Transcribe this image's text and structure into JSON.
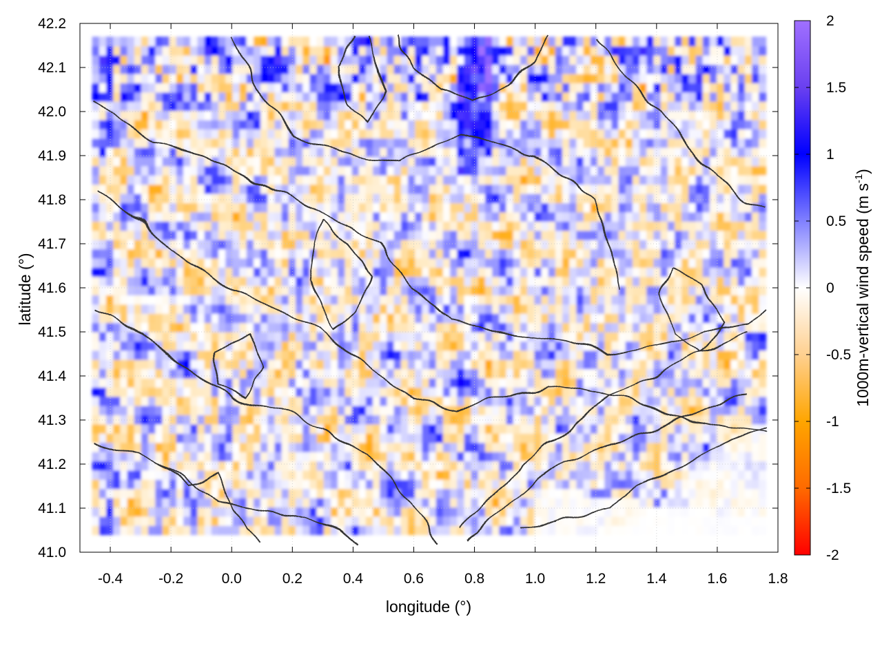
{
  "chart_data": {
    "type": "heatmap",
    "title": "",
    "xlabel": "longitude (°)",
    "ylabel": "latitude (°)",
    "colorbar_label": "1000m-vertical wind speed (m s",
    "colorbar_label_sup": "-1",
    "colorbar_label_end": ")",
    "xlim": [
      -0.5,
      1.8
    ],
    "ylim": [
      41.0,
      42.2
    ],
    "clim": [
      -2,
      2
    ],
    "x_ticks": [
      -0.4,
      -0.2,
      0.0,
      0.2,
      0.4,
      0.6,
      0.8,
      1.0,
      1.2,
      1.4,
      1.6,
      1.8
    ],
    "x_tick_labels": [
      "-0.4",
      "-0.2",
      "0.0",
      "0.2",
      "0.4",
      "0.6",
      "0.8",
      "1.0",
      "1.2",
      "1.4",
      "1.6",
      "1.8"
    ],
    "y_ticks": [
      41.0,
      41.1,
      41.2,
      41.3,
      41.4,
      41.5,
      41.6,
      41.7,
      41.8,
      41.9,
      42.0,
      42.1,
      42.2
    ],
    "y_tick_labels": [
      "41.0",
      "41.1",
      "41.2",
      "41.3",
      "41.4",
      "41.5",
      "41.6",
      "41.7",
      "41.8",
      "41.9",
      "42.0",
      "42.1",
      "42.2"
    ],
    "colorbar_ticks": [
      2,
      1.5,
      1,
      0.5,
      0,
      -0.5,
      -1,
      -1.5,
      -2
    ],
    "colorbar_tick_labels": [
      "2",
      "1.5",
      "1",
      "0.5",
      "0",
      "-0.5",
      "-1",
      "-1.5",
      "-2"
    ],
    "colormap": [
      {
        "value": -2,
        "color": "#ff0000"
      },
      {
        "value": -1,
        "color": "#ffa500"
      },
      {
        "value": 0,
        "color": "#ffffff"
      },
      {
        "value": 1,
        "color": "#0000ff"
      },
      {
        "value": 2,
        "color": "#a070ff"
      }
    ],
    "grid": true,
    "contours": true,
    "contour_color": "#333333"
  }
}
